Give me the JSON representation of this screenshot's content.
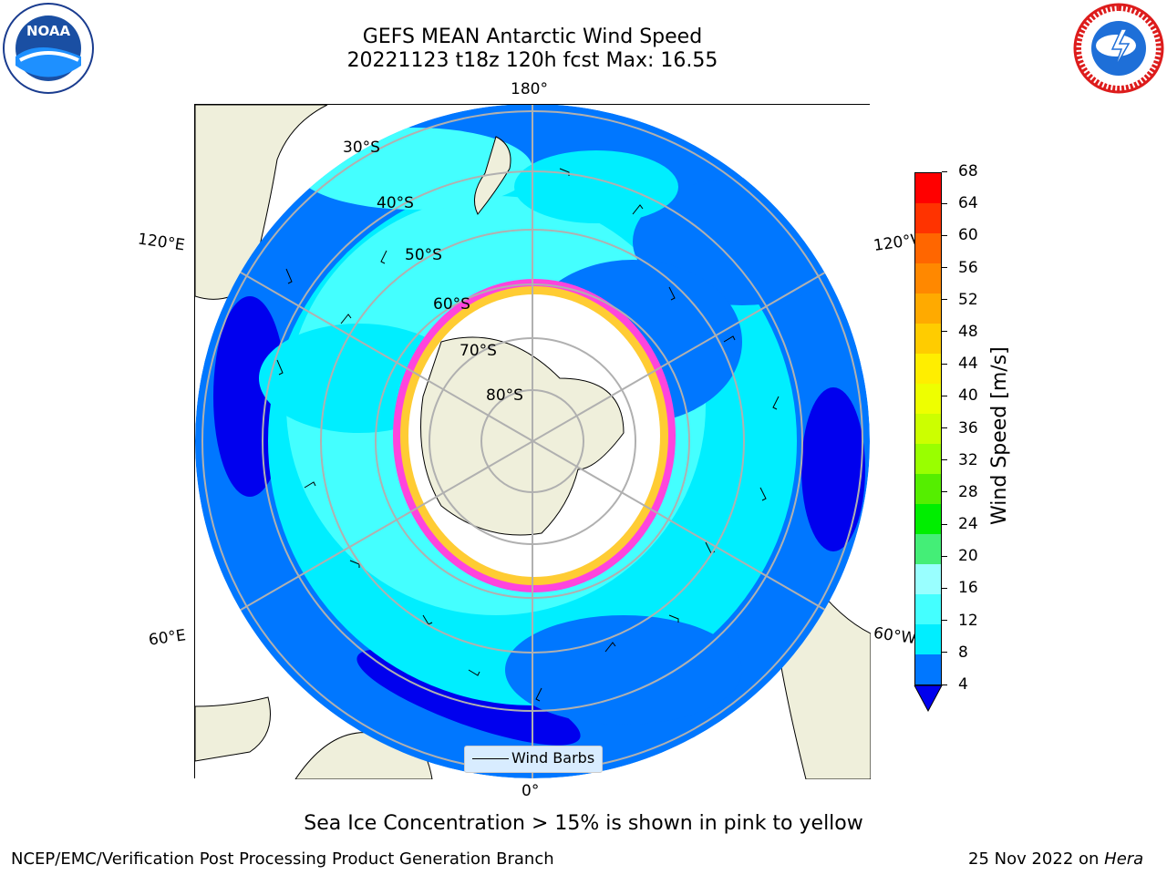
{
  "title": {
    "line1": "GEFS MEAN Antarctic Wind Speed",
    "line2": "20221123 t18z 120h fcst   Max: 16.55"
  },
  "caption": "Sea Ice Concentration > 15% is shown in pink to yellow",
  "footer": {
    "left": "NCEP/EMC/Verification Post Processing Product Generation Branch",
    "right_prefix": "25 Nov 2022 on ",
    "right_machine": "Hera"
  },
  "logos": {
    "left": "NOAA",
    "right": "NATIONAL WEATHER SERVICE"
  },
  "legend": {
    "label": "Wind Barbs"
  },
  "colorbar": {
    "label": "Wind Speed [m/s]",
    "ticks": [
      "68",
      "64",
      "60",
      "56",
      "52",
      "48",
      "44",
      "40",
      "36",
      "32",
      "28",
      "24",
      "20",
      "16",
      "12",
      "8",
      "4"
    ],
    "colors": [
      "#ff0000",
      "#ff3300",
      "#ff6600",
      "#ff8800",
      "#ffaa00",
      "#ffcc00",
      "#ffee00",
      "#eeff00",
      "#ccff00",
      "#99ff00",
      "#55ee00",
      "#00ee00",
      "#44ee77",
      "#99ffff",
      "#44ffff",
      "#00eeff",
      "#0077ff"
    ],
    "min_color": "#0000ee"
  },
  "map": {
    "lon_labels": {
      "top": "180°",
      "bottom": "0°",
      "left_top": "120°E",
      "left_bottom": "60°E",
      "right_top": "120°W",
      "right_bottom": "60°W"
    },
    "lat_labels": [
      "30°S",
      "40°S",
      "50°S",
      "60°S",
      "70°S",
      "80°S"
    ],
    "colors": {
      "land": "#efefdb",
      "ocean_low": "#0077ff",
      "ocean_min": "#0000ee",
      "ocean_mid": "#00eeff",
      "ocean_high": "#44ffff",
      "ice_edge": "#ff44dd",
      "ice_yellow": "#ffcc33",
      "grid": "#b0b0b0"
    }
  }
}
